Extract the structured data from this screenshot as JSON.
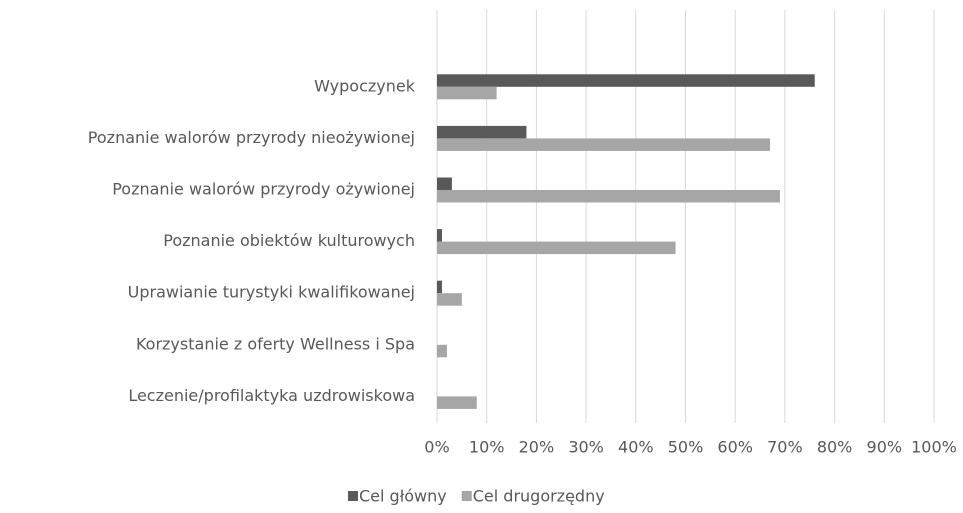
{
  "chart_data": {
    "type": "bar",
    "orientation": "horizontal",
    "categories": [
      "Wypoczynek",
      "Poznanie walorów przyrody nieożywionej",
      "Poznanie walorów przyrody ożywionej",
      "Poznanie obiektów kulturowych",
      "Uprawianie turystyki kwalifikowanej",
      "Korzystanie z oferty Wellness i Spa",
      "Leczenie/profilaktyka uzdrowiskowa"
    ],
    "series": [
      {
        "name": "Cel główny",
        "color": "#595959",
        "values": [
          76,
          18,
          3,
          1,
          1,
          0,
          0
        ]
      },
      {
        "name": "Cel drugorzędny",
        "color": "#a6a6a6",
        "values": [
          12,
          67,
          69,
          48,
          5,
          2,
          8
        ]
      }
    ],
    "xlim": [
      0,
      100
    ],
    "xticks": [
      {
        "value": 0,
        "label": "0%"
      },
      {
        "value": 10,
        "label": "10%"
      },
      {
        "value": 20,
        "label": "20%"
      },
      {
        "value": 30,
        "label": "30%"
      },
      {
        "value": 40,
        "label": "40%"
      },
      {
        "value": 50,
        "label": "50%"
      },
      {
        "value": 60,
        "label": "60%"
      },
      {
        "value": 70,
        "label": "70%"
      },
      {
        "value": 80,
        "label": "80%"
      },
      {
        "value": 90,
        "label": "90%"
      },
      {
        "value": 100,
        "label": "100%"
      }
    ],
    "grid": true,
    "legend": "bottom"
  }
}
